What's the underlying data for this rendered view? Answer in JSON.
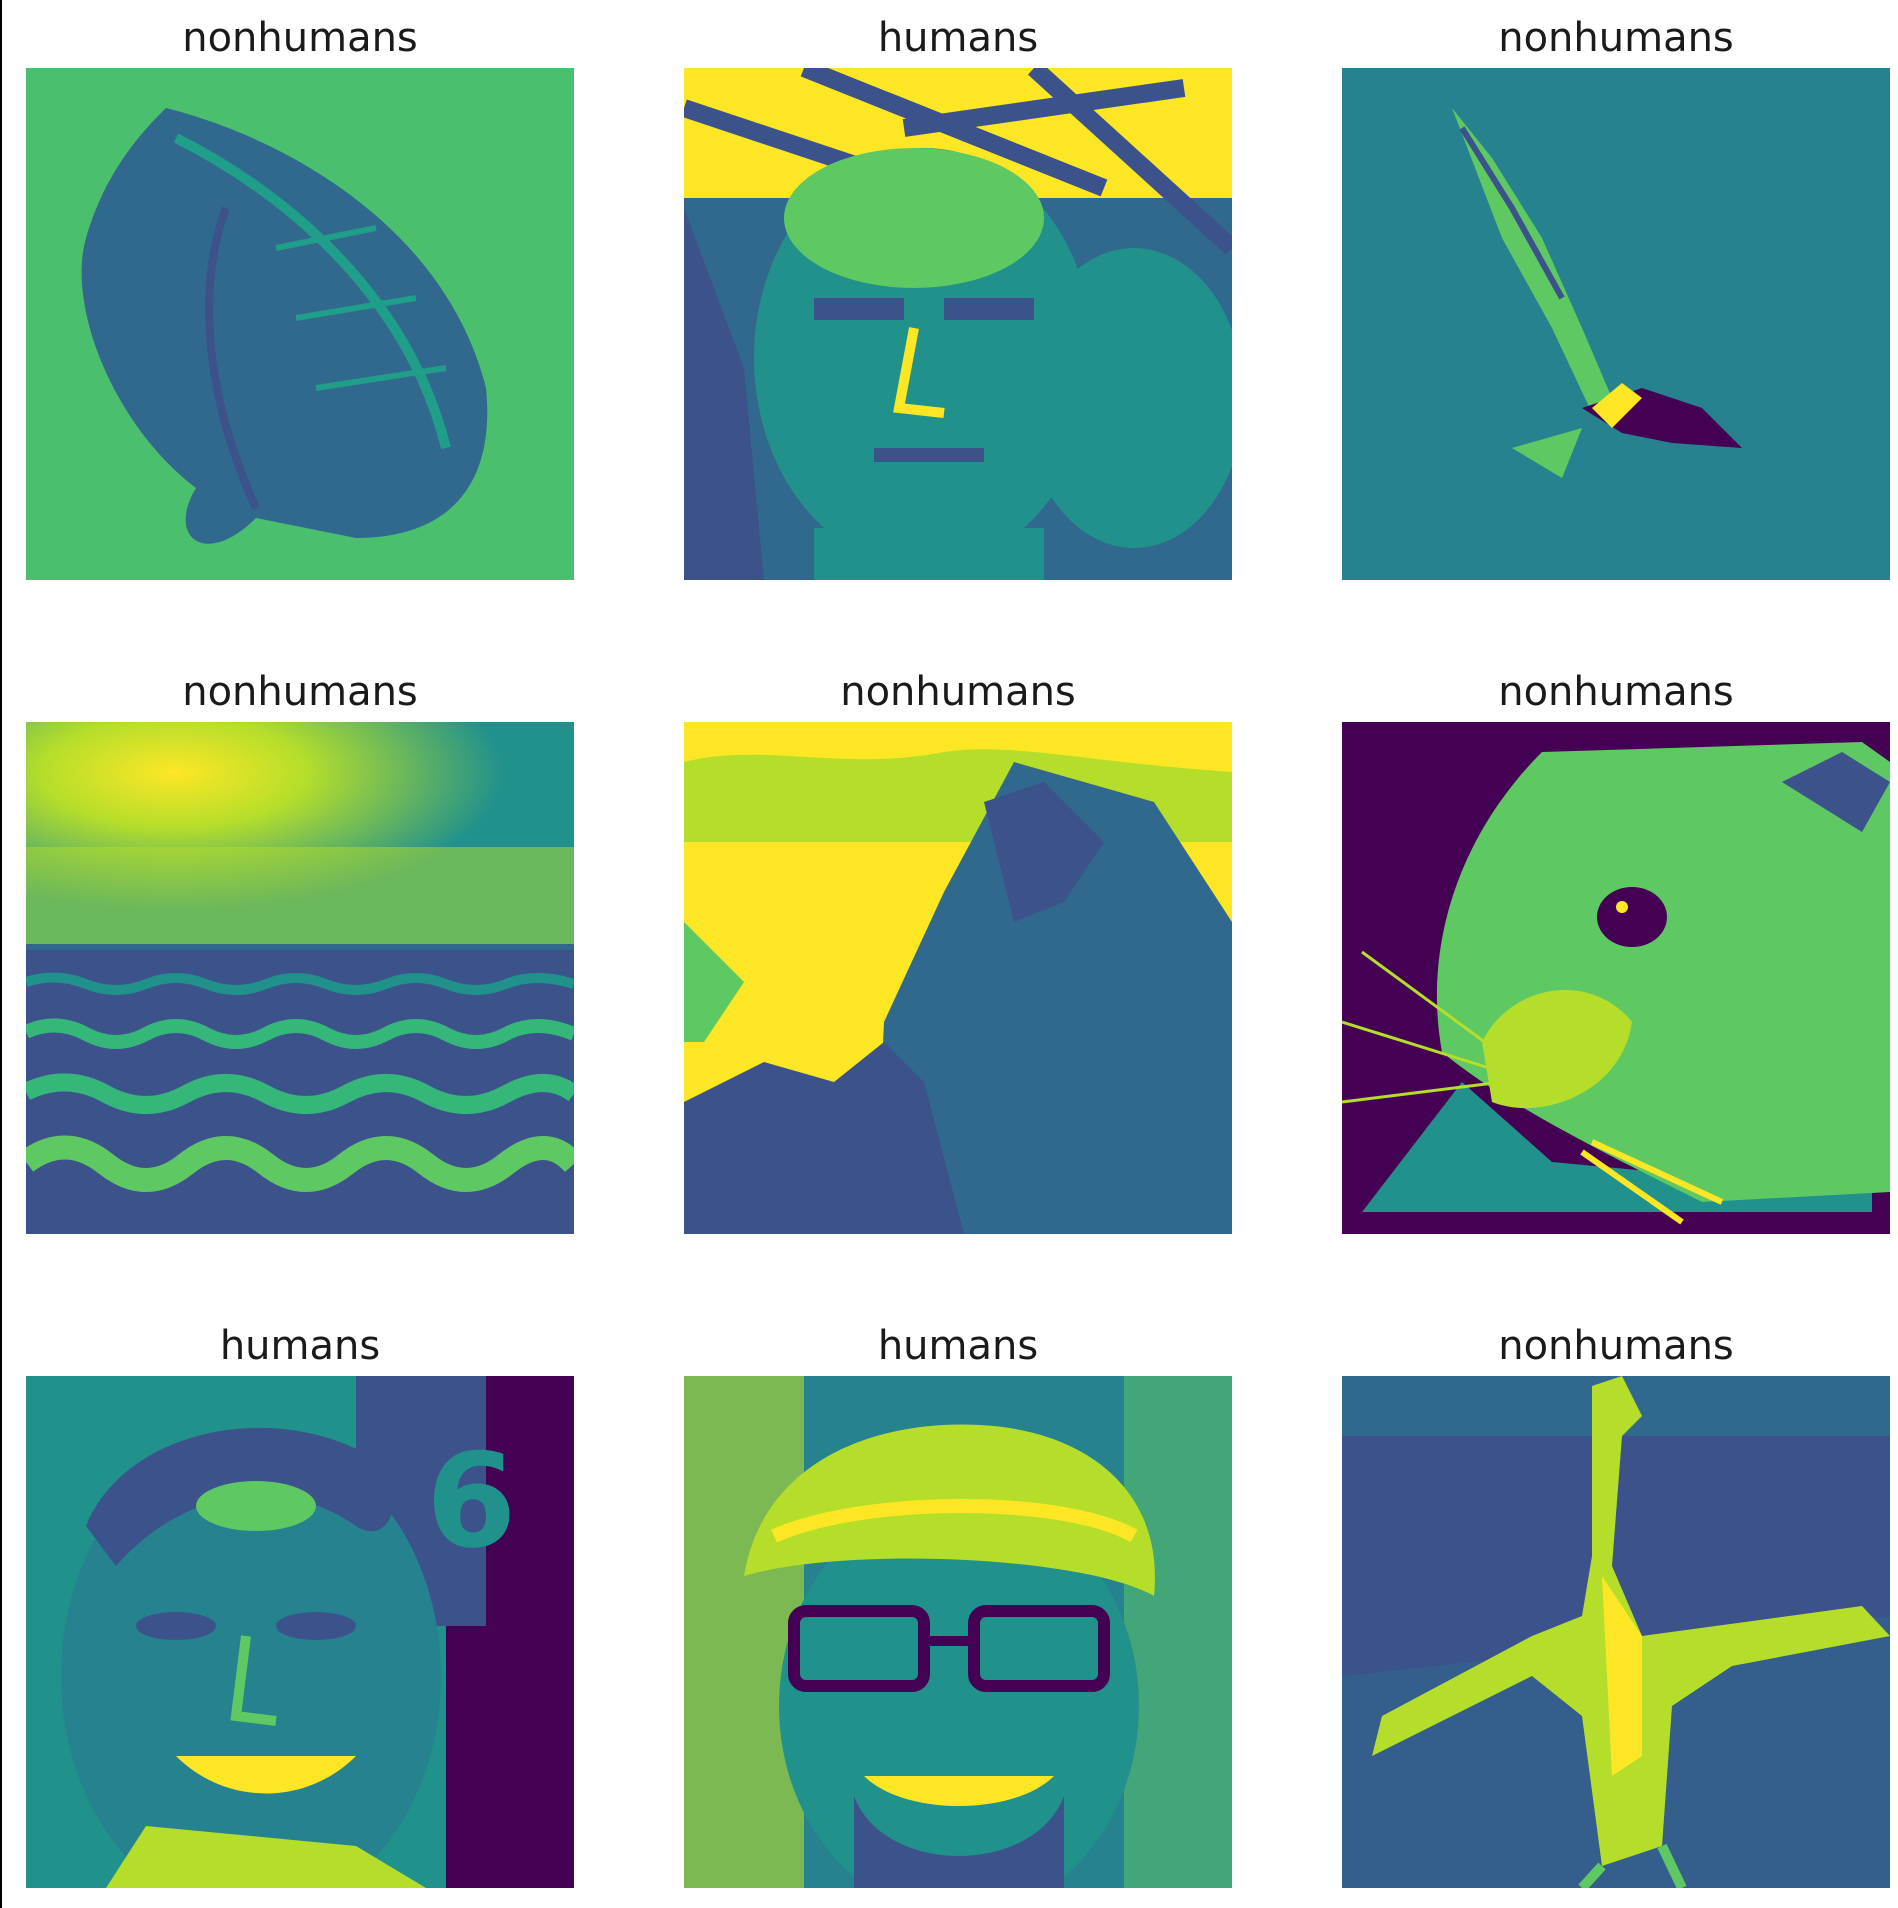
{
  "grid": {
    "cells": [
      {
        "title": "nonhumans",
        "subject": "leaf"
      },
      {
        "title": "humans",
        "subject": "bald man face under branches"
      },
      {
        "title": "nonhumans",
        "subject": "eagle in flight"
      },
      {
        "title": "nonhumans",
        "subject": "sun over crop field"
      },
      {
        "title": "nonhumans",
        "subject": "mountain with clouds"
      },
      {
        "title": "nonhumans",
        "subject": "guinea pig close-up"
      },
      {
        "title": "humans",
        "subject": "smiling man"
      },
      {
        "title": "humans",
        "subject": "man with flat cap and glasses"
      },
      {
        "title": "nonhumans",
        "subject": "white bird spreading wings"
      }
    ]
  },
  "palette": {
    "dark": "#440154",
    "blue_purple": "#3b528b",
    "teal": "#21918c",
    "green": "#5ec962",
    "yellow": "#fde725"
  }
}
